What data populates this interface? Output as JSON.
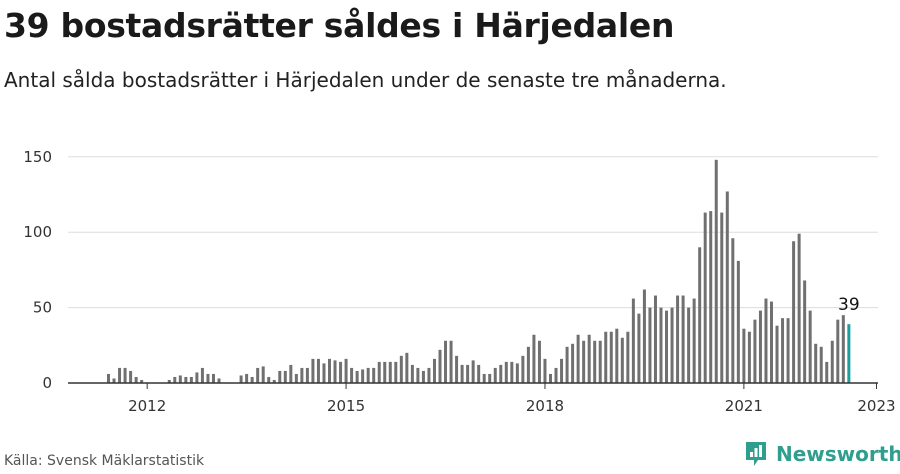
{
  "header": {
    "title": "39 bostadsrätter såldes i Härjedalen",
    "subtitle": "Antal sålda bostadsrätter i Härjedalen under de senaste tre månaderna."
  },
  "footer": {
    "source": "Källa: Svensk Mäklarstatistik",
    "brand": "Newsworthy",
    "brand_icon": "bar-chart-logo-icon"
  },
  "colors": {
    "bar": "#707070",
    "highlight": "#1a9e9e",
    "grid": "#dddddd",
    "axis": "#333333",
    "brand": "#2f9e8e"
  },
  "chart_data": {
    "type": "bar",
    "x_start": "2011-06",
    "x_interval": "month",
    "y_ticks": [
      0,
      50,
      100,
      150
    ],
    "x_ticks": [
      "2012",
      "2015",
      "2018",
      "2021",
      "2023"
    ],
    "ylim": [
      0,
      160
    ],
    "grid": true,
    "highlight_last": true,
    "last_value_label": "39",
    "values": [
      6,
      3,
      10,
      10,
      8,
      4,
      2,
      0,
      0,
      0,
      0,
      2,
      4,
      5,
      4,
      4,
      7,
      10,
      6,
      6,
      3,
      0,
      0,
      0,
      5,
      6,
      4,
      10,
      11,
      4,
      2,
      8,
      8,
      12,
      6,
      10,
      10,
      16,
      16,
      13,
      16,
      15,
      14,
      16,
      10,
      8,
      9,
      10,
      10,
      14,
      14,
      14,
      14,
      18,
      20,
      12,
      10,
      8,
      10,
      16,
      22,
      28,
      28,
      18,
      12,
      12,
      15,
      12,
      6,
      6,
      10,
      12,
      14,
      14,
      13,
      18,
      24,
      32,
      28,
      16,
      6,
      10,
      16,
      24,
      26,
      32,
      28,
      32,
      28,
      28,
      34,
      34,
      36,
      30,
      34,
      56,
      46,
      62,
      50,
      58,
      50,
      48,
      50,
      58,
      58,
      50,
      56,
      90,
      113,
      114,
      148,
      113,
      127,
      96,
      81,
      36,
      34,
      42,
      48,
      56,
      54,
      38,
      43,
      43,
      94,
      99,
      68,
      48,
      26,
      24,
      14,
      28,
      42,
      45,
      39
    ]
  }
}
